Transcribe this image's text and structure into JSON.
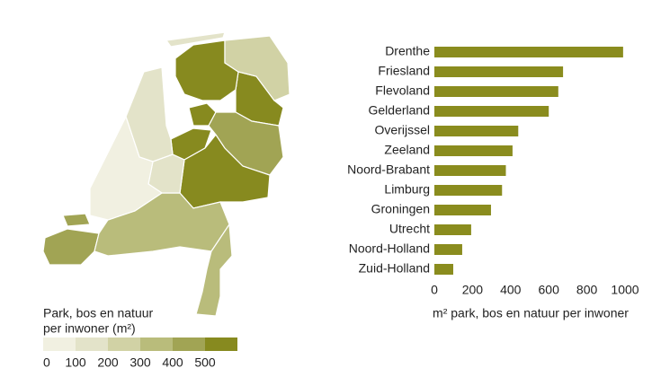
{
  "chart_data": {
    "type": "bar",
    "orientation": "horizontal",
    "categories": [
      "Drenthe",
      "Friesland",
      "Flevoland",
      "Gelderland",
      "Overijssel",
      "Zeeland",
      "Noord-Brabant",
      "Limburg",
      "Groningen",
      "Utrecht",
      "Noord-Holland",
      "Zuid-Holland"
    ],
    "values": [
      990,
      675,
      650,
      600,
      440,
      410,
      375,
      355,
      297,
      193,
      146,
      99
    ],
    "color": "#8a8c1e",
    "xlim": [
      0,
      1000
    ],
    "xticks": [
      0,
      200,
      400,
      600,
      800,
      1000
    ],
    "xlabel": "m² park, bos en natuur per inwoner",
    "grid": false,
    "map_legend": {
      "title_lines": [
        "Park, bos en natuur",
        "per inwoner (m²)"
      ],
      "bins": [
        0,
        100,
        200,
        300,
        400,
        500
      ],
      "colors": [
        "#f1f0e1",
        "#e3e3c9",
        "#d1d2a5",
        "#b9bc7b",
        "#a1a454",
        "#878a1f"
      ]
    }
  }
}
